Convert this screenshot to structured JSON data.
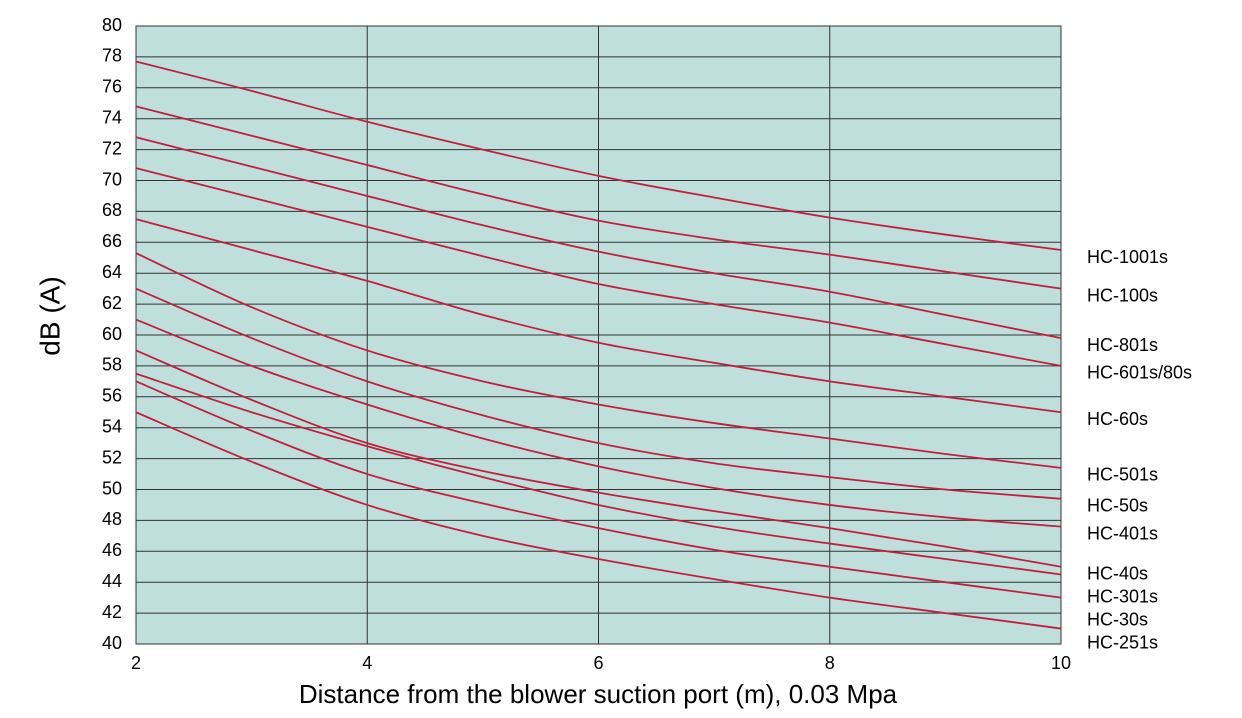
{
  "chart_data": {
    "type": "line",
    "xlabel": "Distance from the blower suction port (m), 0.03 Mpa",
    "ylabel": "dB (A)",
    "x": [
      2,
      3,
      4,
      5,
      6,
      7,
      8,
      9,
      10
    ],
    "xlim": [
      2,
      10
    ],
    "xticks": [
      2,
      4,
      6,
      8,
      10
    ],
    "ylim": [
      40,
      80
    ],
    "yticks": [
      40,
      42,
      44,
      46,
      48,
      50,
      52,
      54,
      56,
      58,
      60,
      62,
      64,
      66,
      68,
      70,
      72,
      74,
      76,
      78,
      80
    ],
    "grid": true,
    "background": "#bfdfdd",
    "grid_color": "#333333",
    "series": [
      {
        "name": "HC-1001s",
        "color": "#c0213a",
        "values": [
          77.7,
          75.8,
          73.8,
          72.0,
          70.3,
          68.9,
          67.6,
          66.5,
          65.5
        ]
      },
      {
        "name": "HC-100s",
        "color": "#c0213a",
        "values": [
          74.8,
          72.9,
          71.0,
          69.1,
          67.4,
          66.2,
          65.2,
          64.1,
          63.0
        ]
      },
      {
        "name": "HC-801s",
        "color": "#c0213a",
        "values": [
          72.8,
          70.9,
          69.0,
          67.1,
          65.4,
          64.0,
          62.8,
          61.3,
          59.8
        ]
      },
      {
        "name": "HC-601s/80s",
        "color": "#c0213a",
        "values": [
          70.8,
          68.9,
          67.0,
          65.1,
          63.3,
          62.0,
          60.8,
          59.4,
          58.0
        ]
      },
      {
        "name": "HC-60s",
        "color": "#c0213a",
        "values": [
          67.5,
          65.5,
          63.5,
          61.3,
          59.5,
          58.2,
          57.0,
          56.0,
          55.0
        ]
      },
      {
        "name": "HC-501s",
        "color": "#c0213a",
        "values": [
          65.3,
          61.8,
          59.0,
          57.0,
          55.5,
          54.3,
          53.3,
          52.3,
          51.4
        ]
      },
      {
        "name": "HC-50s",
        "color": "#c0213a",
        "values": [
          63.0,
          59.8,
          57.0,
          54.8,
          53.0,
          51.7,
          50.8,
          50.0,
          49.4
        ]
      },
      {
        "name": "HC-401s",
        "color": "#c0213a",
        "values": [
          61.0,
          58.0,
          55.5,
          53.3,
          51.5,
          50.1,
          49.0,
          48.2,
          47.6
        ]
      },
      {
        "name": "HC-40s",
        "color": "#c0213a",
        "values": [
          59.0,
          55.8,
          53.0,
          51.2,
          49.8,
          48.6,
          47.5,
          46.3,
          45.0
        ]
      },
      {
        "name": "HC-301s",
        "color": "#c0213a",
        "values": [
          57.5,
          55.0,
          52.8,
          50.8,
          49.0,
          47.6,
          46.5,
          45.5,
          44.5
        ]
      },
      {
        "name": "HC-30s",
        "color": "#c0213a",
        "values": [
          57.0,
          53.8,
          51.0,
          49.1,
          47.5,
          46.1,
          45.0,
          44.0,
          43.0
        ]
      },
      {
        "name": "HC-251s",
        "color": "#c0213a",
        "values": [
          55.0,
          51.8,
          49.0,
          47.0,
          45.5,
          44.2,
          43.0,
          42.0,
          41.0
        ]
      }
    ]
  }
}
